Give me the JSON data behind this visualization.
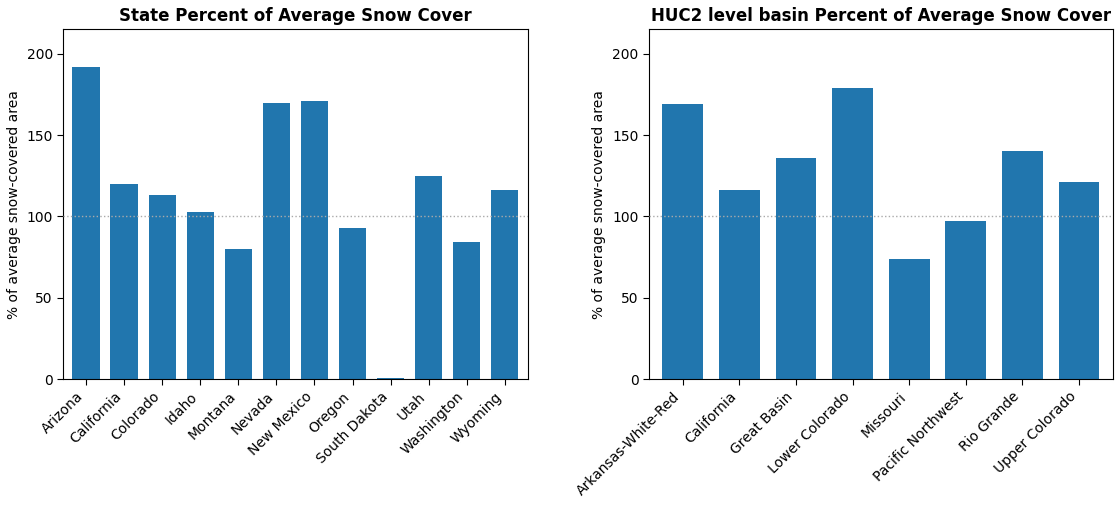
{
  "states": [
    "Arizona",
    "California",
    "Colorado",
    "Idaho",
    "Montana",
    "Nevada",
    "New Mexico",
    "Oregon",
    "South Dakota",
    "Utah",
    "Washington",
    "Wyoming"
  ],
  "state_values": [
    192,
    120,
    113,
    103,
    80,
    170,
    171,
    93,
    1,
    125,
    84,
    116
  ],
  "basins": [
    "Arkansas-White-Red",
    "California",
    "Great Basin",
    "Lower Colorado",
    "Missouri",
    "Pacific Northwest",
    "Rio Grande",
    "Upper Colorado"
  ],
  "basin_values": [
    169,
    116,
    136,
    179,
    74,
    97,
    140,
    121
  ],
  "bar_color": "#2176AE",
  "title1": "State Percent of Average Snow Cover",
  "title2": "HUC2 level basin Percent of Average Snow Cover",
  "ylabel": "% of average snow-covered area",
  "ylim": [
    0,
    215
  ],
  "yticks": [
    0,
    50,
    100,
    150,
    200
  ],
  "hline_y": 100,
  "hline_color": "#aaaaaa",
  "title_fontsize": 12,
  "ylabel_fontsize": 10,
  "tick_fontsize": 10,
  "label_rotation": 45
}
